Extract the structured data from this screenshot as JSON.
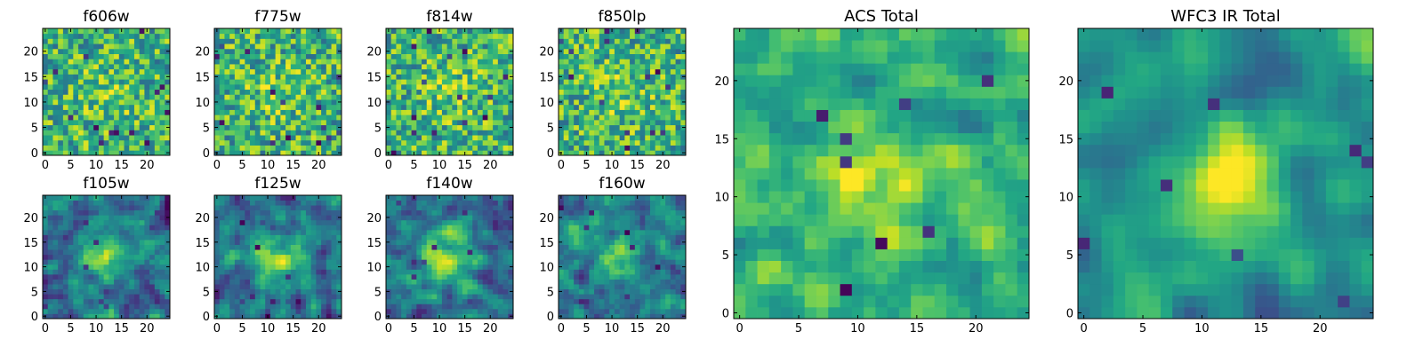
{
  "chart_data": [
    {
      "type": "heatmap",
      "title": "f606w",
      "xticks": [
        0,
        5,
        10,
        15,
        20
      ],
      "yticks": [
        0,
        5,
        10,
        15,
        20
      ],
      "xlim": [
        -0.5,
        24.5
      ],
      "ylim": [
        -0.5,
        24.5
      ],
      "grid_size": [
        25,
        25
      ],
      "colormap": "viridis",
      "pattern": "noise",
      "seed": 11,
      "x": [],
      "y": [],
      "values": []
    },
    {
      "type": "heatmap",
      "title": "f775w",
      "xticks": [
        0,
        5,
        10,
        15,
        20
      ],
      "yticks": [
        0,
        5,
        10,
        15,
        20
      ],
      "xlim": [
        -0.5,
        24.5
      ],
      "ylim": [
        -0.5,
        24.5
      ],
      "grid_size": [
        25,
        25
      ],
      "colormap": "viridis",
      "pattern": "noise",
      "seed": 23,
      "x": [],
      "y": [],
      "values": []
    },
    {
      "type": "heatmap",
      "title": "f814w",
      "xticks": [
        0,
        5,
        10,
        15,
        20
      ],
      "yticks": [
        0,
        5,
        10,
        15,
        20
      ],
      "xlim": [
        -0.5,
        24.5
      ],
      "ylim": [
        -0.5,
        24.5
      ],
      "grid_size": [
        25,
        25
      ],
      "colormap": "viridis",
      "pattern": "noise",
      "seed": 37,
      "x": [],
      "y": [],
      "values": []
    },
    {
      "type": "heatmap",
      "title": "f850lp",
      "xticks": [
        0,
        5,
        10,
        15,
        20
      ],
      "yticks": [
        0,
        5,
        10,
        15,
        20
      ],
      "xlim": [
        -0.5,
        24.5
      ],
      "ylim": [
        -0.5,
        24.5
      ],
      "grid_size": [
        25,
        25
      ],
      "colormap": "viridis",
      "pattern": "noise",
      "seed": 41,
      "x": [],
      "y": [],
      "values": []
    },
    {
      "type": "heatmap",
      "title": "f105w",
      "xticks": [
        0,
        5,
        10,
        15,
        20
      ],
      "yticks": [
        0,
        5,
        10,
        15,
        20
      ],
      "xlim": [
        -0.5,
        24.5
      ],
      "ylim": [
        -0.5,
        24.5
      ],
      "grid_size": [
        25,
        25
      ],
      "colormap": "viridis",
      "pattern": "smooth",
      "seed": 53,
      "x": [],
      "y": [],
      "values": []
    },
    {
      "type": "heatmap",
      "title": "f125w",
      "xticks": [
        0,
        5,
        10,
        15,
        20
      ],
      "yticks": [
        0,
        5,
        10,
        15,
        20
      ],
      "xlim": [
        -0.5,
        24.5
      ],
      "ylim": [
        -0.5,
        24.5
      ],
      "grid_size": [
        25,
        25
      ],
      "colormap": "viridis",
      "pattern": "smooth",
      "seed": 67,
      "x": [],
      "y": [],
      "values": []
    },
    {
      "type": "heatmap",
      "title": "f140w",
      "xticks": [
        0,
        5,
        10,
        15,
        20
      ],
      "yticks": [
        0,
        5,
        10,
        15,
        20
      ],
      "xlim": [
        -0.5,
        24.5
      ],
      "ylim": [
        -0.5,
        24.5
      ],
      "grid_size": [
        25,
        25
      ],
      "colormap": "viridis",
      "pattern": "smooth",
      "seed": 71,
      "x": [],
      "y": [],
      "values": []
    },
    {
      "type": "heatmap",
      "title": "f160w",
      "xticks": [
        0,
        5,
        10,
        15,
        20
      ],
      "yticks": [
        0,
        5,
        10,
        15,
        20
      ],
      "xlim": [
        -0.5,
        24.5
      ],
      "ylim": [
        -0.5,
        24.5
      ],
      "grid_size": [
        25,
        25
      ],
      "colormap": "viridis",
      "pattern": "smooth",
      "seed": 83,
      "x": [],
      "y": [],
      "values": []
    },
    {
      "type": "heatmap",
      "title": "ACS Total",
      "xticks": [
        0,
        5,
        10,
        15,
        20
      ],
      "yticks": [
        0,
        5,
        10,
        15,
        20
      ],
      "xlim": [
        -0.5,
        24.5
      ],
      "ylim": [
        -0.5,
        24.5
      ],
      "grid_size": [
        25,
        25
      ],
      "colormap": "viridis",
      "pattern": "acs",
      "seed": 97,
      "x": [],
      "y": [],
      "values": []
    },
    {
      "type": "heatmap",
      "title": "WFC3 IR Total",
      "xticks": [
        0,
        5,
        10,
        15,
        20
      ],
      "yticks": [
        0,
        5,
        10,
        15,
        20
      ],
      "xlim": [
        -0.5,
        24.5
      ],
      "ylim": [
        -0.5,
        24.5
      ],
      "grid_size": [
        25,
        25
      ],
      "colormap": "viridis",
      "pattern": "ir",
      "seed": 101,
      "x": [],
      "y": [],
      "values": []
    }
  ]
}
